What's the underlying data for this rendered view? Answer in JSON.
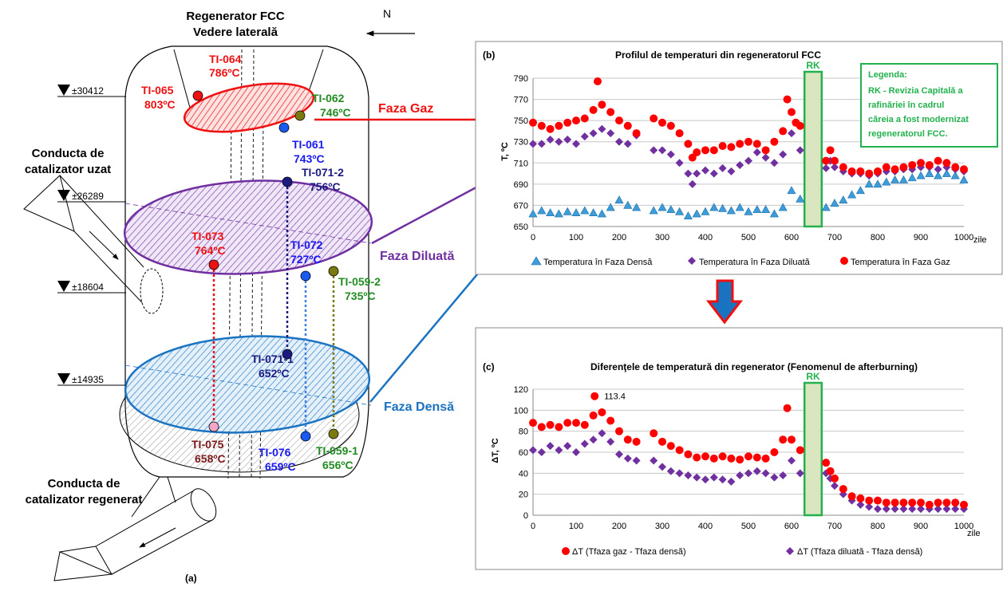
{
  "diagram": {
    "title_line1": "Regenerator FCC",
    "title_line2": "Vedere laterală",
    "north": "N",
    "panel_label": "(a)",
    "elevations": [
      "±30412",
      "±26289",
      "±18604",
      "±14935"
    ],
    "spent_pipe_line1": "Conducta de",
    "spent_pipe_line2": "catalizator uzat",
    "regen_pipe_line1": "Conducta de",
    "regen_pipe_line2": "catalizator regenerat",
    "phase_gas": "Faza Gaz",
    "phase_dilute": "Faza Diluată",
    "phase_dense": "Faza Densă",
    "sensors": {
      "ti064_tag": "TI-064",
      "ti064_val": "786ºC",
      "ti065_tag": "TI-065",
      "ti065_val": "803ºC",
      "ti062_tag": "TI-062",
      "ti062_val": "746ºC",
      "ti061_tag": "TI-061",
      "ti061_val": "743ºC",
      "ti0712_tag": "TI-071-2",
      "ti0712_val": "756ºC",
      "ti073_tag": "TI-073",
      "ti073_val": "764ºC",
      "ti072_tag": "TI-072",
      "ti072_val": "727ºC",
      "ti0592_tag": "TI-059-2",
      "ti0592_val": "735ºC",
      "ti0711_tag": "TI-071-1",
      "ti0711_val": "652ºC",
      "ti075_tag": "TI-075",
      "ti075_val": "658ºC",
      "ti076_tag": "TI-076",
      "ti076_val": "659ºC",
      "ti0591_tag": "TI-059-1",
      "ti0591_val": "656ºC"
    },
    "colors": {
      "gas": "#ee1111",
      "dilute": "#7030a0",
      "dense": "#1a73c0",
      "blue": "#1a1af0",
      "navy": "#1a1a80",
      "olive": "#7a7a10",
      "green": "#228b22",
      "maroon": "#7a1a1a",
      "rk_fill": "#d9e6bf",
      "rk_border": "#22b14c"
    }
  },
  "chart_b": {
    "panel_label": "(b)",
    "title": "Profilul de temperaturi din regeneratorul FCC",
    "ylabel": "T, ºC",
    "xunit": "zile",
    "rk_label": "RK",
    "legend_box_line1": "Legenda:",
    "legend_box_line2": "RK - Revizia Capitală a",
    "legend_box_line3": "rafinăriei în cadrul",
    "legend_box_line4": "căreia a fost modernizat",
    "legend_box_line5": "regeneratorul FCC.",
    "legend_dense": "Temperatura în Faza Densă",
    "legend_dilute": "Temperatura în Faza Diluată",
    "legend_gas": "Temperatura în Faza Gaz"
  },
  "chart_c": {
    "panel_label": "(c)",
    "title": "Diferenţele de temperatură din regenerator (Fenomenul de afterburning)",
    "ylabel": "ΔT, ºC",
    "xunit": "zile",
    "rk_label": "RK",
    "peak_label": "113.4",
    "legend_gas": "ΔT (Tfaza gaz - Tfaza densă)",
    "legend_dilute": "ΔT (Tfaza diluată - Tfaza densă)"
  },
  "chart_data": [
    {
      "type": "scatter",
      "title": "Profilul de temperaturi din regeneratorul FCC",
      "ylabel": "T, ºC",
      "xlabel": "zile",
      "xlim": [
        0,
        1000
      ],
      "ylim": [
        650,
        790
      ],
      "xticks": [
        0,
        100,
        200,
        300,
        400,
        500,
        600,
        700,
        800,
        900,
        1000
      ],
      "yticks": [
        650,
        670,
        690,
        710,
        730,
        750,
        770,
        790
      ],
      "grid": true,
      "legend_position": "bottom",
      "rk_band": [
        630,
        670
      ],
      "series": [
        {
          "name": "Temperatura în Faza Gaz",
          "color": "#ff0000",
          "marker": "circle",
          "x": [
            0,
            20,
            40,
            60,
            80,
            100,
            120,
            140,
            150,
            160,
            180,
            200,
            220,
            240,
            280,
            300,
            320,
            340,
            360,
            370,
            380,
            400,
            420,
            440,
            460,
            480,
            500,
            520,
            540,
            560,
            580,
            590,
            600,
            610,
            620,
            680,
            690,
            700,
            720,
            740,
            760,
            780,
            800,
            820,
            840,
            860,
            880,
            900,
            920,
            940,
            960,
            980,
            1000
          ],
          "y": [
            748,
            745,
            742,
            745,
            748,
            750,
            752,
            760,
            787,
            765,
            758,
            750,
            745,
            738,
            752,
            748,
            745,
            738,
            728,
            715,
            720,
            722,
            722,
            726,
            725,
            728,
            730,
            728,
            722,
            730,
            740,
            770,
            758,
            748,
            745,
            712,
            722,
            712,
            706,
            702,
            702,
            700,
            702,
            706,
            704,
            706,
            708,
            710,
            708,
            712,
            710,
            706,
            704
          ]
        },
        {
          "name": "Temperatura în Faza Diluată",
          "color": "#7030a0",
          "marker": "diamond",
          "x": [
            0,
            20,
            40,
            60,
            80,
            100,
            120,
            140,
            160,
            180,
            200,
            220,
            240,
            280,
            300,
            320,
            340,
            360,
            370,
            380,
            400,
            420,
            440,
            460,
            480,
            500,
            520,
            540,
            560,
            580,
            600,
            620,
            680,
            690,
            700,
            720,
            740,
            760,
            780,
            800,
            820,
            840,
            860,
            880,
            900,
            920,
            940,
            960,
            980,
            1000
          ],
          "y": [
            728,
            728,
            732,
            730,
            732,
            728,
            735,
            738,
            742,
            738,
            730,
            728,
            736,
            722,
            722,
            718,
            710,
            700,
            690,
            700,
            703,
            700,
            705,
            702,
            708,
            712,
            720,
            715,
            710,
            718,
            738,
            722,
            705,
            712,
            706,
            702,
            700,
            700,
            698,
            700,
            702,
            702,
            704,
            704,
            706,
            706,
            704,
            706,
            704,
            702
          ]
        },
        {
          "name": "Temperatura în Faza Densă",
          "color": "#3f9cd9",
          "marker": "triangle",
          "x": [
            0,
            20,
            40,
            60,
            80,
            100,
            120,
            140,
            160,
            180,
            200,
            220,
            240,
            280,
            300,
            320,
            340,
            360,
            380,
            400,
            420,
            440,
            460,
            480,
            500,
            520,
            540,
            560,
            580,
            600,
            620,
            680,
            700,
            720,
            740,
            760,
            780,
            800,
            820,
            840,
            860,
            880,
            900,
            920,
            940,
            960,
            980,
            1000
          ],
          "y": [
            662,
            665,
            663,
            662,
            664,
            663,
            665,
            663,
            662,
            668,
            675,
            670,
            668,
            665,
            668,
            666,
            664,
            660,
            662,
            664,
            668,
            667,
            665,
            668,
            664,
            666,
            666,
            662,
            668,
            684,
            676,
            668,
            672,
            675,
            680,
            684,
            690,
            690,
            692,
            694,
            694,
            696,
            698,
            700,
            698,
            700,
            698,
            694
          ]
        }
      ]
    },
    {
      "type": "scatter",
      "title": "Diferenţele de temperatură din regenerator (Fenomenul de afterburning)",
      "ylabel": "ΔT, ºC",
      "xlabel": "zile",
      "xlim": [
        0,
        1000
      ],
      "ylim": [
        0,
        120
      ],
      "xticks": [
        0,
        100,
        200,
        300,
        400,
        500,
        600,
        700,
        800,
        900,
        1000
      ],
      "yticks": [
        0,
        20,
        40,
        60,
        80,
        100,
        120
      ],
      "grid": true,
      "legend_position": "bottom",
      "rk_band": [
        630,
        670
      ],
      "annotation": {
        "x": 143,
        "y": 113.4,
        "text": "113.4"
      },
      "series": [
        {
          "name": "ΔT (Tfaza gaz - Tfaza densă)",
          "color": "#ff0000",
          "marker": "circle",
          "x": [
            0,
            20,
            40,
            60,
            80,
            100,
            120,
            140,
            143,
            160,
            180,
            200,
            220,
            240,
            280,
            300,
            320,
            340,
            360,
            380,
            400,
            420,
            440,
            460,
            480,
            500,
            520,
            540,
            560,
            580,
            590,
            600,
            620,
            680,
            690,
            700,
            720,
            740,
            760,
            780,
            800,
            820,
            840,
            860,
            880,
            900,
            920,
            940,
            960,
            980,
            1000
          ],
          "y": [
            88,
            84,
            86,
            84,
            88,
            88,
            86,
            95,
            113.4,
            98,
            90,
            80,
            72,
            70,
            78,
            70,
            66,
            62,
            58,
            55,
            56,
            54,
            56,
            54,
            53,
            56,
            55,
            54,
            60,
            72,
            102,
            72,
            62,
            50,
            42,
            35,
            25,
            18,
            16,
            14,
            14,
            12,
            12,
            12,
            12,
            12,
            10,
            12,
            12,
            12,
            10
          ]
        },
        {
          "name": "ΔT (Tfaza diluată - Tfaza densă)",
          "color": "#7030a0",
          "marker": "diamond",
          "x": [
            0,
            20,
            40,
            60,
            80,
            100,
            120,
            140,
            160,
            180,
            200,
            220,
            240,
            280,
            300,
            320,
            340,
            360,
            380,
            400,
            420,
            440,
            460,
            480,
            500,
            520,
            540,
            560,
            580,
            600,
            620,
            680,
            690,
            700,
            720,
            740,
            760,
            780,
            800,
            820,
            840,
            860,
            880,
            900,
            920,
            940,
            960,
            980,
            1000
          ],
          "y": [
            62,
            60,
            66,
            62,
            66,
            60,
            68,
            72,
            78,
            70,
            58,
            54,
            52,
            52,
            46,
            42,
            40,
            38,
            36,
            34,
            36,
            34,
            32,
            38,
            40,
            42,
            40,
            36,
            38,
            52,
            40,
            40,
            35,
            28,
            20,
            14,
            10,
            8,
            6,
            6,
            6,
            6,
            6,
            6,
            6,
            6,
            6,
            6,
            6
          ]
        }
      ]
    }
  ]
}
